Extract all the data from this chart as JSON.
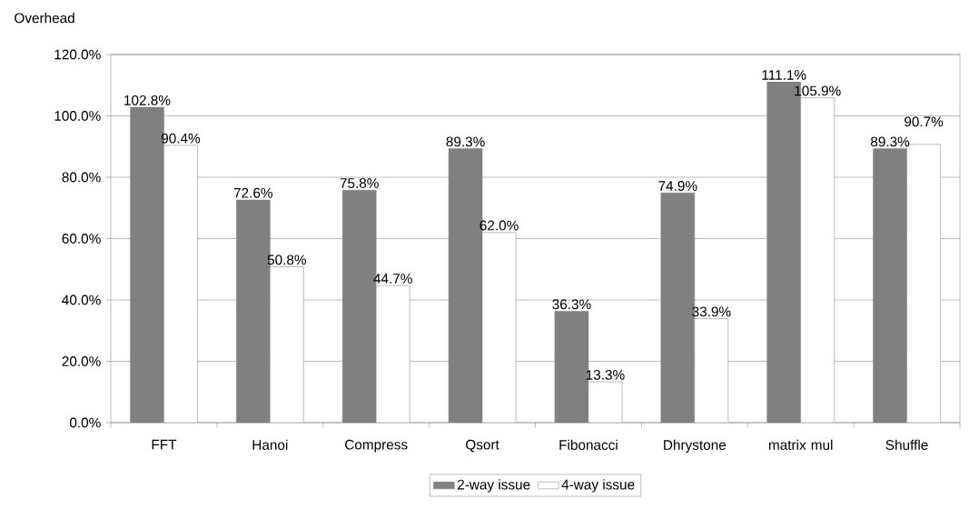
{
  "chart_data": {
    "type": "bar",
    "ylabel": "Overhead",
    "categories": [
      "FFT",
      "Hanoi",
      "Compress",
      "Qsort",
      "Fibonacci",
      "Dhrystone",
      "matrix mul",
      "Shuffle"
    ],
    "series": [
      {
        "name": "2-way  issue",
        "color": "#808080",
        "values": [
          102.8,
          72.6,
          75.8,
          89.3,
          36.3,
          74.9,
          111.1,
          89.3
        ],
        "value_labels": [
          "102.8%",
          "72.6%",
          "75.8%",
          "89.3%",
          "36.3%",
          "74.9%",
          "111.1%",
          "89.3%"
        ]
      },
      {
        "name": "4-way  issue",
        "color": "#ffffff",
        "values": [
          90.4,
          50.8,
          44.7,
          62.0,
          13.3,
          33.9,
          105.9,
          90.7
        ],
        "value_labels": [
          "90.4%",
          "50.8%",
          "44.7%",
          "62.0%",
          "13.3%",
          "33.9%",
          "105.9%",
          "90.7%"
        ]
      }
    ],
    "ylim": [
      0,
      120
    ],
    "yticks": [
      {
        "value": 0,
        "label": "0.0%"
      },
      {
        "value": 20,
        "label": "20.0%"
      },
      {
        "value": 40,
        "label": "40.0%"
      },
      {
        "value": 60,
        "label": "60.0%"
      },
      {
        "value": 80,
        "label": "80.0%"
      },
      {
        "value": 100,
        "label": "100.0%"
      },
      {
        "value": 120,
        "label": "120.0%"
      }
    ],
    "grid": "y",
    "legend": "bottom"
  }
}
